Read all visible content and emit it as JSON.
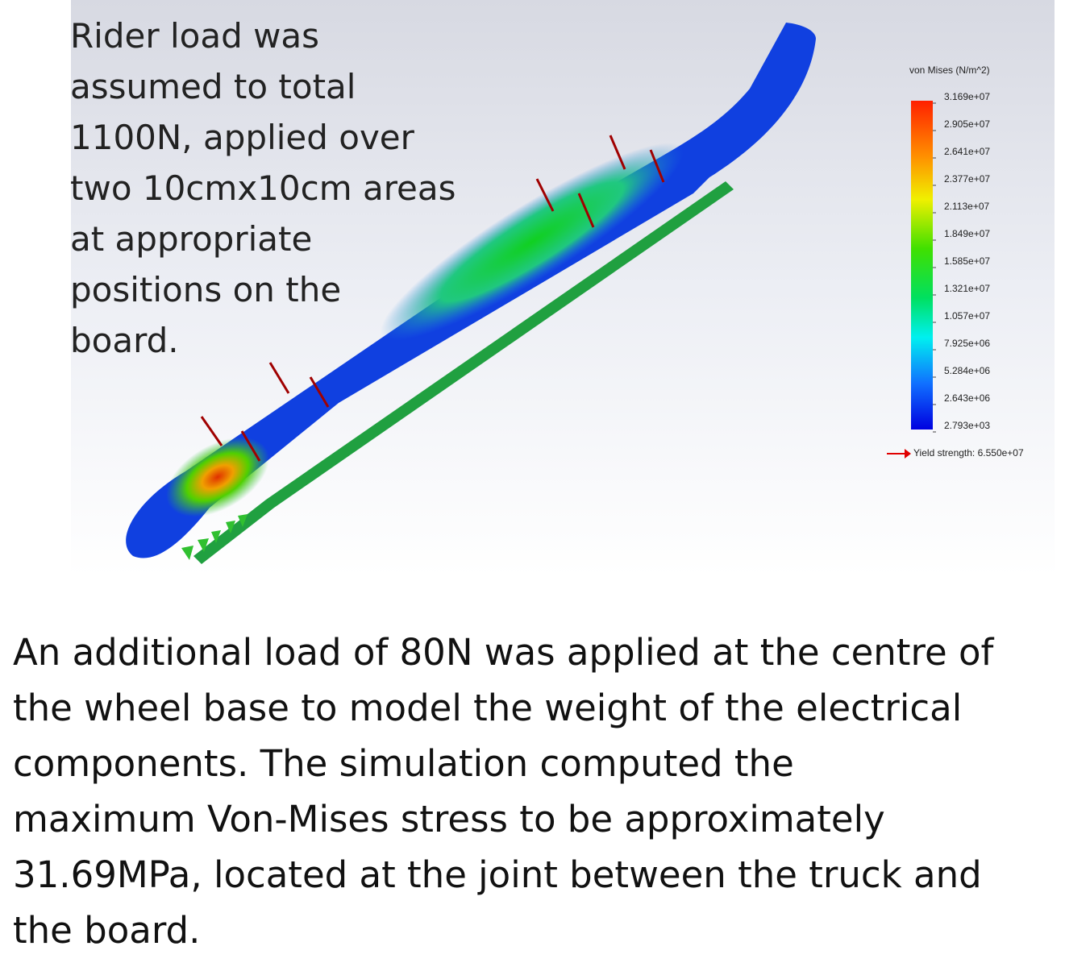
{
  "intro_text": [
    "Rider load was",
    "assumed to  total",
    "1100N, applied over",
    "two 10cmx10cm areas",
    "at  appropriate",
    "positions on  the",
    "board."
  ],
  "legend": {
    "title": "von Mises (N/m^2)",
    "ticks": [
      "3.169e+07",
      "2.905e+07",
      "2.641e+07",
      "2.377e+07",
      "2.113e+07",
      "1.849e+07",
      "1.585e+07",
      "1.321e+07",
      "1.057e+07",
      "7.925e+06",
      "5.284e+06",
      "2.643e+06",
      "2.793e+03"
    ],
    "yield": "Yield strength: 6.550e+07"
  },
  "body_text": [
    "An additional load of 80N was applied at the centre of",
    "the wheel base to model the weight of the electrical",
    "components. The simulation computed  the",
    "maximum Von-Mises stress to be approximately",
    "31.69MPa, located at the joint between the truck and",
    "the board."
  ]
}
